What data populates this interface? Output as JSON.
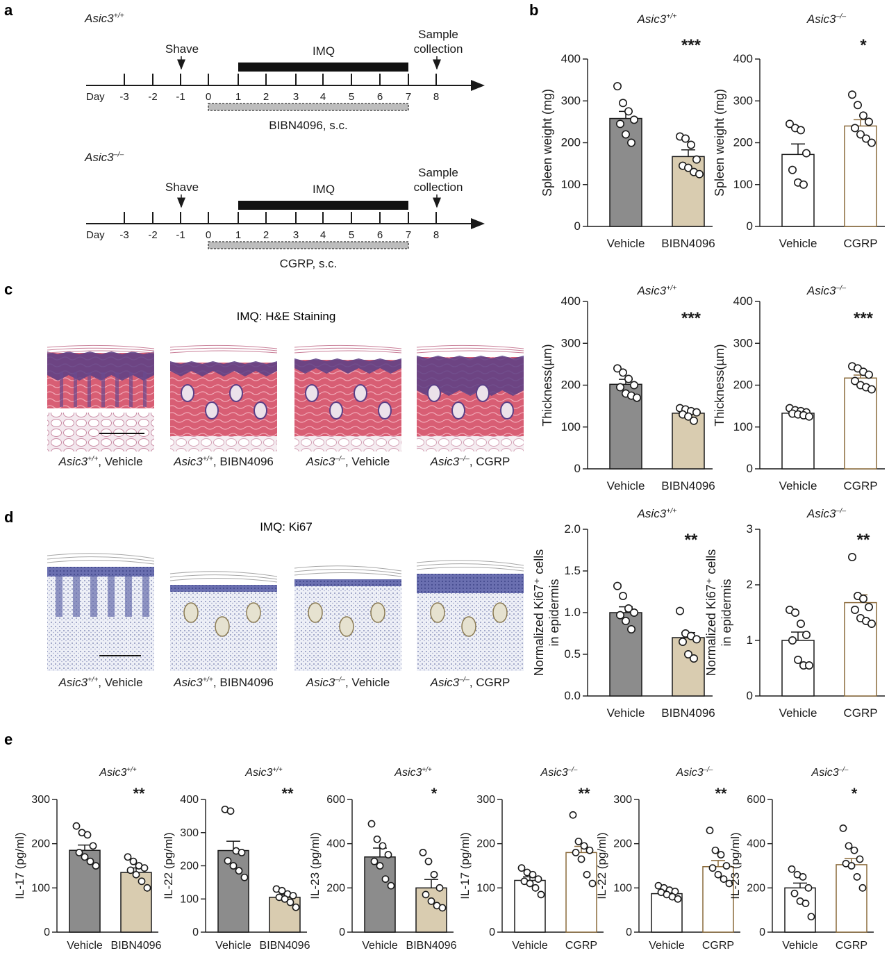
{
  "panel_letters": [
    "a",
    "b",
    "c",
    "d",
    "e"
  ],
  "colors": {
    "vehicle_gray": "#8c8c8c",
    "treatment_tan": "#d9ccb0",
    "treatment_edge": "#8a6a3a",
    "ink": "#1a1a1a"
  },
  "timeline": {
    "day_label": "Day",
    "days": [
      "-3",
      "-2",
      "-1",
      "0",
      "1",
      "2",
      "3",
      "4",
      "5",
      "6",
      "7",
      "8"
    ],
    "shave": "Shave",
    "imq": "IMQ",
    "sample_line1": "Sample",
    "sample_line2": "collection",
    "rows": [
      {
        "genotype_base": "Asic3",
        "genotype_sup": "+/+",
        "treatment": "BIBN4096, s.c."
      },
      {
        "genotype_base": "Asic3",
        "genotype_sup": "–/–",
        "treatment": "CGRP, s.c."
      }
    ]
  },
  "histology": {
    "he_title": "IMQ: H&E Staining",
    "ki67_title": "IMQ: Ki67",
    "captions": [
      {
        "base": "Asic3",
        "sup": "+/+",
        "rest": ", Vehicle"
      },
      {
        "base": "Asic3",
        "sup": "+/+",
        "rest": ", BIBN4096"
      },
      {
        "base": "Asic3",
        "sup": "–/–",
        "rest": ", Vehicle"
      },
      {
        "base": "Asic3",
        "sup": "–/–",
        "rest": ", CGRP"
      }
    ]
  },
  "chart_data": [
    {
      "id": "b1",
      "type": "bar",
      "title_base": "Asic3",
      "title_sup": "+/+",
      "ylabel": "Spleen weight (mg)",
      "ylabel2": "",
      "ylim": [
        0,
        400
      ],
      "yticks": [
        "0",
        "100",
        "200",
        "300",
        "400"
      ],
      "categories": [
        "Vehicle",
        "BIBN4096"
      ],
      "values": [
        258,
        167
      ],
      "sem": [
        17,
        16
      ],
      "points": [
        [
          335,
          295,
          275,
          255,
          245,
          220,
          200
        ],
        [
          215,
          210,
          195,
          160,
          145,
          140,
          130,
          125
        ]
      ],
      "significance": "***"
    },
    {
      "id": "b2",
      "type": "bar",
      "title_base": "Asic3",
      "title_sup": "–/–",
      "ylabel": "Spleen weight (mg)",
      "ylabel2": "",
      "ylim": [
        0,
        400
      ],
      "yticks": [
        "0",
        "100",
        "200",
        "300",
        "400"
      ],
      "categories": [
        "Vehicle",
        "CGRP"
      ],
      "values": [
        172,
        240
      ],
      "sem": [
        25,
        15
      ],
      "points": [
        [
          245,
          235,
          230,
          175,
          135,
          105,
          100
        ],
        [
          315,
          290,
          265,
          250,
          235,
          220,
          210,
          200
        ]
      ],
      "significance": "*"
    },
    {
      "id": "c1",
      "type": "bar",
      "title_base": "Asic3",
      "title_sup": "+/+",
      "ylabel": "Thickness(µm)",
      "ylabel2": "",
      "ylim": [
        0,
        400
      ],
      "yticks": [
        "0",
        "100",
        "200",
        "300",
        "400"
      ],
      "categories": [
        "Vehicle",
        "BIBN4096"
      ],
      "values": [
        202,
        133
      ],
      "sem": [
        12,
        6
      ],
      "points": [
        [
          240,
          230,
          215,
          200,
          195,
          180,
          175,
          170
        ],
        [
          145,
          142,
          138,
          135,
          130,
          125,
          115
        ]
      ],
      "significance": "***"
    },
    {
      "id": "c2",
      "type": "bar",
      "title_base": "Asic3",
      "title_sup": "–/–",
      "ylabel": "Thickness(µm)",
      "ylabel2": "",
      "ylim": [
        0,
        400
      ],
      "yticks": [
        "0",
        "100",
        "200",
        "300",
        "400"
      ],
      "categories": [
        "Vehicle",
        "CGRP"
      ],
      "values": [
        133,
        217
      ],
      "sem": [
        4,
        7
      ],
      "points": [
        [
          145,
          140,
          138,
          135,
          132,
          130,
          128,
          125
        ],
        [
          245,
          240,
          232,
          225,
          210,
          200,
          195,
          190
        ]
      ],
      "significance": "***"
    },
    {
      "id": "d1",
      "type": "bar",
      "title_base": "Asic3",
      "title_sup": "+/+",
      "ylabel": "Normalized Ki67⁺ cells",
      "ylabel2": "in epidermis",
      "ylim": [
        0,
        2
      ],
      "yticks": [
        "0.0",
        "0.5",
        "1.0",
        "1.5",
        "2.0"
      ],
      "categories": [
        "Vehicle",
        "BIBN4096"
      ],
      "values": [
        1.0,
        0.7
      ],
      "sem": [
        0.07,
        0.06
      ],
      "points": [
        [
          1.32,
          1.2,
          1.05,
          1.0,
          0.97,
          0.9,
          0.8
        ],
        [
          1.02,
          0.75,
          0.72,
          0.68,
          0.65,
          0.5,
          0.45
        ]
      ],
      "significance": "**"
    },
    {
      "id": "d2",
      "type": "bar",
      "title_base": "Asic3",
      "title_sup": "–/–",
      "ylabel": "Normalized Ki67⁺ cells",
      "ylabel2": "in epidermis",
      "ylim": [
        0,
        3
      ],
      "yticks": [
        "0",
        "1",
        "2",
        "3"
      ],
      "categories": [
        "Vehicle",
        "CGRP"
      ],
      "values": [
        1.0,
        1.68
      ],
      "sem": [
        0.15,
        0.14
      ],
      "points": [
        [
          1.55,
          1.5,
          1.3,
          1.1,
          1.0,
          0.65,
          0.55,
          0.55
        ],
        [
          2.5,
          1.8,
          1.75,
          1.6,
          1.55,
          1.4,
          1.35,
          1.3
        ]
      ],
      "significance": "**"
    },
    {
      "id": "e1",
      "type": "bar",
      "title_base": "Asic3",
      "title_sup": "+/+",
      "ylabel": "IL-17 (pg/ml)",
      "ylabel2": "",
      "ylim": [
        0,
        300
      ],
      "yticks": [
        "0",
        "100",
        "200",
        "300"
      ],
      "categories": [
        "Vehicle",
        "BIBN4096"
      ],
      "values": [
        185,
        135
      ],
      "sem": [
        12,
        10
      ],
      "points": [
        [
          240,
          225,
          220,
          195,
          180,
          170,
          160,
          150
        ],
        [
          170,
          160,
          150,
          145,
          140,
          130,
          115,
          100
        ]
      ],
      "significance": "**"
    },
    {
      "id": "e2",
      "type": "bar",
      "title_base": "Asic3",
      "title_sup": "+/+",
      "ylabel": "IL-22 (pg/ml)",
      "ylabel2": "",
      "ylim": [
        0,
        400
      ],
      "yticks": [
        "0",
        "100",
        "200",
        "300",
        "400"
      ],
      "categories": [
        "Vehicle",
        "BIBN4096"
      ],
      "values": [
        246,
        105
      ],
      "sem": [
        28,
        8
      ],
      "points": [
        [
          370,
          365,
          245,
          240,
          215,
          200,
          185,
          165
        ],
        [
          130,
          125,
          115,
          110,
          105,
          100,
          90,
          75
        ]
      ],
      "significance": "**"
    },
    {
      "id": "e3",
      "type": "bar",
      "title_base": "Asic3",
      "title_sup": "+/+",
      "ylabel": "IL-23 (pg/ml)",
      "ylabel2": "",
      "ylim": [
        0,
        600
      ],
      "yticks": [
        "0",
        "200",
        "400",
        "600"
      ],
      "categories": [
        "Vehicle",
        "BIBN4096"
      ],
      "values": [
        340,
        200
      ],
      "sem": [
        40,
        38
      ],
      "points": [
        [
          490,
          420,
          390,
          350,
          320,
          300,
          240,
          210
        ],
        [
          360,
          320,
          260,
          200,
          170,
          140,
          120,
          110
        ]
      ],
      "significance": "*"
    },
    {
      "id": "e4",
      "type": "bar",
      "title_base": "Asic3",
      "title_sup": "–/–",
      "ylabel": "IL-17 (pg/ml)",
      "ylabel2": "",
      "ylim": [
        0,
        300
      ],
      "yticks": [
        "0",
        "100",
        "200",
        "300"
      ],
      "categories": [
        "Vehicle",
        "CGRP"
      ],
      "values": [
        117,
        180
      ],
      "sem": [
        8,
        14
      ],
      "points": [
        [
          145,
          135,
          130,
          120,
          115,
          110,
          100,
          85
        ],
        [
          265,
          205,
          195,
          185,
          180,
          165,
          130,
          110
        ]
      ],
      "significance": "**"
    },
    {
      "id": "e5",
      "type": "bar",
      "title_base": "Asic3",
      "title_sup": "–/–",
      "ylabel": "IL-22 (pg/ml)",
      "ylabel2": "",
      "ylim": [
        0,
        300
      ],
      "yticks": [
        "0",
        "100",
        "200",
        "300"
      ],
      "categories": [
        "Vehicle",
        "CGRP"
      ],
      "values": [
        87,
        148
      ],
      "sem": [
        7,
        14
      ],
      "points": [
        [
          105,
          100,
          95,
          92,
          90,
          85,
          80,
          75
        ],
        [
          230,
          185,
          175,
          150,
          145,
          130,
          120,
          110
        ]
      ],
      "significance": "**"
    },
    {
      "id": "e6",
      "type": "bar",
      "title_base": "Asic3",
      "title_sup": "–/–",
      "ylabel": "IL-23 (pg/ml)",
      "ylabel2": "",
      "ylim": [
        0,
        600
      ],
      "yticks": [
        "0",
        "200",
        "400",
        "600"
      ],
      "categories": [
        "Vehicle",
        "CGRP"
      ],
      "values": [
        200,
        305
      ],
      "sem": [
        22,
        28
      ],
      "points": [
        [
          285,
          260,
          250,
          200,
          175,
          140,
          130,
          70
        ],
        [
          470,
          390,
          370,
          330,
          310,
          300,
          250,
          200
        ]
      ],
      "significance": "*"
    }
  ]
}
